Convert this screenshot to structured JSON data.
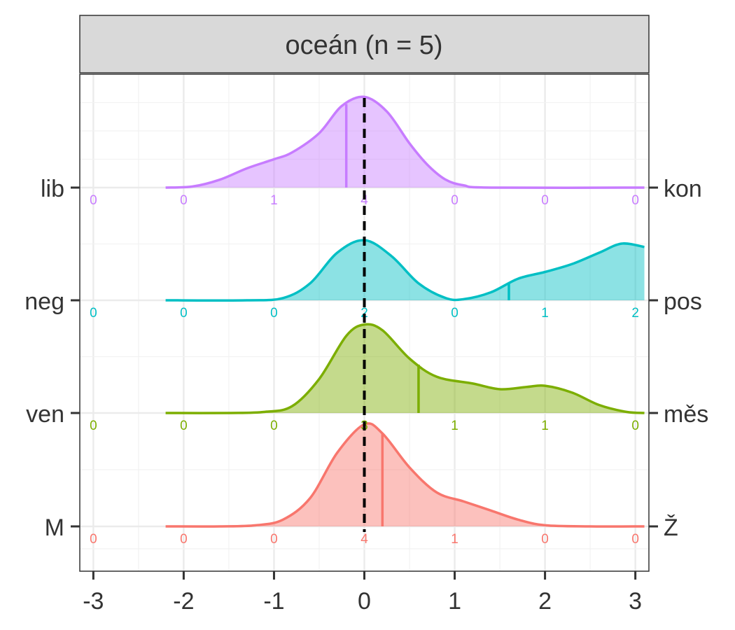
{
  "chart_data": {
    "type": "ridgeline",
    "title": "oceán (n = 5)",
    "xlabel": "",
    "ylabel": "",
    "xlim": [
      -3.15,
      3.15
    ],
    "x_ticks": [
      "-3",
      "-2",
      "-1",
      "0",
      "1",
      "2",
      "3"
    ],
    "count_positions": [
      -3,
      -2,
      -1,
      0,
      1,
      2,
      3
    ],
    "reference_line_x": 0,
    "grid": true,
    "series": [
      {
        "left_label": "M",
        "right_label": "Ž",
        "color": "#F8766D",
        "mean": 0.2,
        "counts": [
          "0",
          "0",
          "0",
          "4",
          "1",
          "0",
          "0"
        ],
        "density": [
          [
            -2.2,
            0
          ],
          [
            -1.6,
            0
          ],
          [
            -1.2,
            0.01
          ],
          [
            -0.9,
            0.06
          ],
          [
            -0.6,
            0.25
          ],
          [
            -0.3,
            0.65
          ],
          [
            0,
            0.9
          ],
          [
            0.2,
            0.82
          ],
          [
            0.5,
            0.52
          ],
          [
            0.8,
            0.3
          ],
          [
            1.1,
            0.22
          ],
          [
            1.4,
            0.14
          ],
          [
            1.7,
            0.06
          ],
          [
            2.0,
            0.01
          ],
          [
            2.5,
            0
          ],
          [
            3.1,
            0
          ]
        ]
      },
      {
        "left_label": "ven",
        "right_label": "měs",
        "color": "#7CAE00",
        "mean": 0.6,
        "counts": [
          "0",
          "0",
          "0",
          "3",
          "1",
          "1",
          "0"
        ],
        "density": [
          [
            -2.2,
            0
          ],
          [
            -1.5,
            0
          ],
          [
            -1.1,
            0.01
          ],
          [
            -0.8,
            0.06
          ],
          [
            -0.5,
            0.3
          ],
          [
            -0.2,
            0.68
          ],
          [
            0,
            0.78
          ],
          [
            0.2,
            0.73
          ],
          [
            0.5,
            0.48
          ],
          [
            0.8,
            0.32
          ],
          [
            1.2,
            0.26
          ],
          [
            1.5,
            0.21
          ],
          [
            1.8,
            0.23
          ],
          [
            2.0,
            0.24
          ],
          [
            2.3,
            0.18
          ],
          [
            2.6,
            0.07
          ],
          [
            2.9,
            0.01
          ],
          [
            3.1,
            0
          ]
        ]
      },
      {
        "left_label": "neg",
        "right_label": "pos",
        "color": "#00BFC4",
        "mean": 1.6,
        "counts": [
          "0",
          "0",
          "0",
          "2",
          "0",
          "1",
          "2"
        ],
        "density": [
          [
            -2.2,
            0
          ],
          [
            -1.3,
            0
          ],
          [
            -0.9,
            0.02
          ],
          [
            -0.6,
            0.15
          ],
          [
            -0.3,
            0.42
          ],
          [
            0,
            0.53
          ],
          [
            0.3,
            0.39
          ],
          [
            0.6,
            0.15
          ],
          [
            0.9,
            0.02
          ],
          [
            1.1,
            0.01
          ],
          [
            1.4,
            0.07
          ],
          [
            1.7,
            0.19
          ],
          [
            2.0,
            0.25
          ],
          [
            2.3,
            0.32
          ],
          [
            2.6,
            0.42
          ],
          [
            2.85,
            0.5
          ],
          [
            3.1,
            0.47
          ]
        ]
      },
      {
        "left_label": "lib",
        "right_label": "kon",
        "color": "#C77CFF",
        "mean": -0.2,
        "counts": [
          "0",
          "0",
          "1",
          "4",
          "0",
          "0",
          "0"
        ],
        "density": [
          [
            -2.2,
            0
          ],
          [
            -1.9,
            0.01
          ],
          [
            -1.6,
            0.07
          ],
          [
            -1.3,
            0.17
          ],
          [
            -1.0,
            0.25
          ],
          [
            -0.8,
            0.31
          ],
          [
            -0.5,
            0.48
          ],
          [
            -0.25,
            0.72
          ],
          [
            0,
            0.8
          ],
          [
            0.25,
            0.67
          ],
          [
            0.5,
            0.39
          ],
          [
            0.7,
            0.2
          ],
          [
            0.9,
            0.07
          ],
          [
            1.1,
            0.02
          ],
          [
            1.4,
            0
          ],
          [
            3.1,
            0
          ]
        ]
      }
    ]
  }
}
